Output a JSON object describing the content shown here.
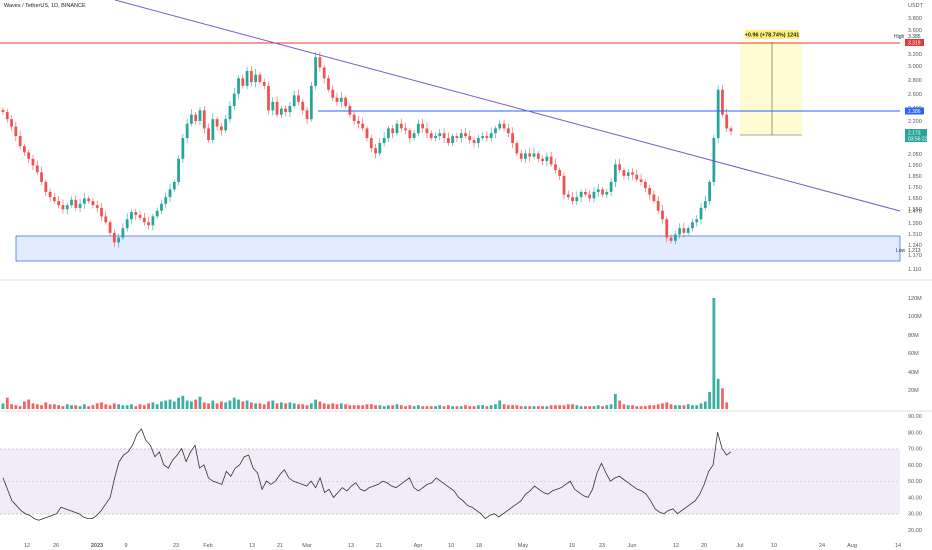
{
  "header": {
    "symbol_title": "Waves / TetherUS, 1D, BINANCE",
    "currency": "USDT"
  },
  "colors": {
    "up": "#26a69a",
    "down": "#ef5350",
    "trendline": "#7e57c2",
    "resistance": "#e53935",
    "level": "#2962ff",
    "zone_fill": "#e3ecff",
    "zone_border": "#2962ff",
    "rsi_line": "#333333",
    "rsi_band": "#ede7f6",
    "measure_fill": "#fff9c4",
    "measure_label_bg": "#fff176"
  },
  "price_axis": {
    "ticks": [
      "3.800",
      "3.600",
      "3.400",
      "3.200",
      "3.000",
      "2.800",
      "2.600",
      "2.400",
      "2.200",
      "2.050",
      "1.950",
      "1.850",
      "1.750",
      "1.650",
      "1.550",
      "1.470",
      "1.390",
      "1.310",
      "1.240",
      "1.170",
      "1.110"
    ],
    "tags": {
      "high_label": "High",
      "high_value": "3.385",
      "resistance_value": "3.319",
      "level_value": "2.386",
      "last_value": "2.173",
      "countdown": "03:56:22",
      "low_label": "Low",
      "low_value": "1.213"
    }
  },
  "volume_axis": {
    "ticks": [
      "120M",
      "100M",
      "80M",
      "60M",
      "40M",
      "20M"
    ]
  },
  "rsi_axis": {
    "ticks": [
      "90.00",
      "80.00",
      "70.00",
      "60.00",
      "50.00",
      "40.00",
      "30.00",
      "20.00"
    ]
  },
  "time_axis": {
    "labels": [
      "12",
      "26",
      "2023",
      "9",
      "23",
      "Feb",
      "13",
      "21",
      "Mar",
      "13",
      "21",
      "Apr",
      "10",
      "18",
      "May",
      "15",
      "23",
      "Jun",
      "12",
      "20",
      "Jul",
      "10",
      "24",
      "Aug",
      "14"
    ]
  },
  "measure": {
    "label": "+0.96 (+78.74%) 1241"
  },
  "chart_data": [
    {
      "type": "candlestick",
      "name": "price",
      "title": "Waves / TetherUS, 1D, BINANCE",
      "candles_close": [
        2.38,
        2.3,
        2.22,
        2.12,
        2.02,
        1.96,
        1.9,
        1.84,
        1.78,
        1.7,
        1.62,
        1.58,
        1.55,
        1.52,
        1.49,
        1.52,
        1.56,
        1.5,
        1.53,
        1.57,
        1.55,
        1.52,
        1.5,
        1.44,
        1.4,
        1.33,
        1.27,
        1.3,
        1.36,
        1.42,
        1.47,
        1.45,
        1.43,
        1.4,
        1.38,
        1.44,
        1.48,
        1.53,
        1.58,
        1.64,
        1.7,
        1.9,
        2.1,
        2.25,
        2.35,
        2.28,
        2.4,
        2.2,
        2.08,
        2.3,
        2.22,
        2.18,
        2.3,
        2.45,
        2.6,
        2.8,
        2.7,
        2.9,
        2.75,
        2.85,
        2.75,
        2.7,
        2.4,
        2.5,
        2.35,
        2.42,
        2.38,
        2.45,
        2.58,
        2.5,
        2.4,
        2.3,
        2.7,
        3.1,
        2.95,
        2.8,
        2.65,
        2.55,
        2.5,
        2.55,
        2.45,
        2.35,
        2.28,
        2.25,
        2.2,
        2.1,
        2.0,
        1.95,
        2.05,
        2.1,
        2.2,
        2.15,
        2.25,
        2.2,
        2.18,
        2.1,
        2.15,
        2.25,
        2.2,
        2.15,
        2.1,
        2.12,
        2.15,
        2.1,
        2.05,
        2.12,
        2.1,
        2.15,
        2.12,
        2.08,
        2.05,
        2.1,
        2.12,
        2.1,
        2.15,
        2.2,
        2.25,
        2.2,
        2.15,
        2.05,
        1.95,
        1.9,
        1.95,
        1.92,
        1.95,
        1.9,
        1.88,
        1.92,
        1.85,
        1.8,
        1.75,
        1.6,
        1.58,
        1.55,
        1.58,
        1.62,
        1.6,
        1.57,
        1.62,
        1.64,
        1.6,
        1.62,
        1.7,
        1.85,
        1.8,
        1.75,
        1.78,
        1.76,
        1.72,
        1.7,
        1.65,
        1.6,
        1.55,
        1.48,
        1.42,
        1.3,
        1.28,
        1.32,
        1.36,
        1.33,
        1.36,
        1.4,
        1.42,
        1.5,
        1.55,
        1.7,
        2.1,
        2.65,
        2.35,
        2.2,
        2.17
      ]
    },
    {
      "type": "bar",
      "name": "volume",
      "unit": "M",
      "values": [
        6,
        12,
        5,
        4,
        3,
        8,
        10,
        6,
        5,
        4,
        7,
        5,
        5,
        4,
        3,
        5,
        4,
        4,
        3,
        5,
        3,
        4,
        6,
        7,
        5,
        4,
        6,
        5,
        4,
        4,
        5,
        3,
        5,
        4,
        6,
        7,
        5,
        8,
        9,
        10,
        8,
        12,
        14,
        9,
        8,
        10,
        13,
        7,
        6,
        9,
        6,
        8,
        7,
        9,
        12,
        10,
        8,
        9,
        7,
        6,
        6,
        5,
        8,
        9,
        6,
        7,
        6,
        7,
        6,
        5,
        5,
        4,
        6,
        10,
        8,
        6,
        5,
        6,
        5,
        6,
        5,
        4,
        4,
        4,
        4,
        5,
        5,
        4,
        4,
        3,
        4,
        4,
        5,
        4,
        3,
        4,
        3,
        4,
        3,
        3,
        3,
        3,
        4,
        3,
        4,
        3,
        3,
        3,
        4,
        3,
        3,
        4,
        4,
        3,
        4,
        5,
        9,
        5,
        4,
        4,
        4,
        3,
        3,
        3,
        3,
        3,
        3,
        3,
        4,
        4,
        4,
        4,
        5,
        5,
        4,
        3,
        3,
        3,
        3,
        4,
        3,
        4,
        5,
        16,
        9,
        5,
        4,
        4,
        3,
        3,
        3,
        4,
        4,
        5,
        6,
        7,
        5,
        4,
        4,
        4,
        5,
        4,
        4,
        6,
        8,
        18,
        118,
        32,
        22,
        7
      ]
    },
    {
      "type": "line",
      "name": "RSI",
      "ylim": [
        20,
        90
      ],
      "bands": [
        30,
        70
      ],
      "values": [
        52,
        45,
        38,
        35,
        32,
        30,
        29,
        27,
        26,
        27,
        28,
        29,
        30,
        34,
        33,
        32,
        31,
        30,
        28,
        27,
        27,
        29,
        32,
        36,
        40,
        52,
        62,
        66,
        68,
        72,
        79,
        82,
        75,
        72,
        65,
        68,
        60,
        58,
        63,
        66,
        70,
        62,
        68,
        72,
        58,
        60,
        52,
        50,
        49,
        48,
        56,
        53,
        58,
        60,
        65,
        66,
        58,
        55,
        45,
        50,
        48,
        50,
        54,
        57,
        52,
        50,
        49,
        48,
        47,
        50,
        46,
        52,
        43,
        45,
        40,
        43,
        46,
        44,
        47,
        49,
        45,
        44,
        46,
        47,
        48,
        50,
        49,
        47,
        46,
        48,
        50,
        52,
        46,
        44,
        46,
        48,
        49,
        52,
        50,
        48,
        46,
        44,
        40,
        38,
        35,
        34,
        32,
        30,
        27,
        29,
        30,
        28,
        30,
        32,
        34,
        36,
        38,
        42,
        44,
        47,
        45,
        43,
        42,
        44,
        45,
        46,
        48,
        50,
        45,
        43,
        41,
        40,
        45,
        55,
        61,
        55,
        50,
        52,
        53,
        51,
        49,
        47,
        45,
        44,
        42,
        38,
        33,
        31,
        30,
        32,
        33,
        30,
        32,
        34,
        36,
        38,
        42,
        48,
        56,
        60,
        80,
        70,
        66,
        68
      ],
      "yticks": [
        90,
        80,
        70,
        60,
        50,
        40,
        30,
        20
      ]
    }
  ]
}
